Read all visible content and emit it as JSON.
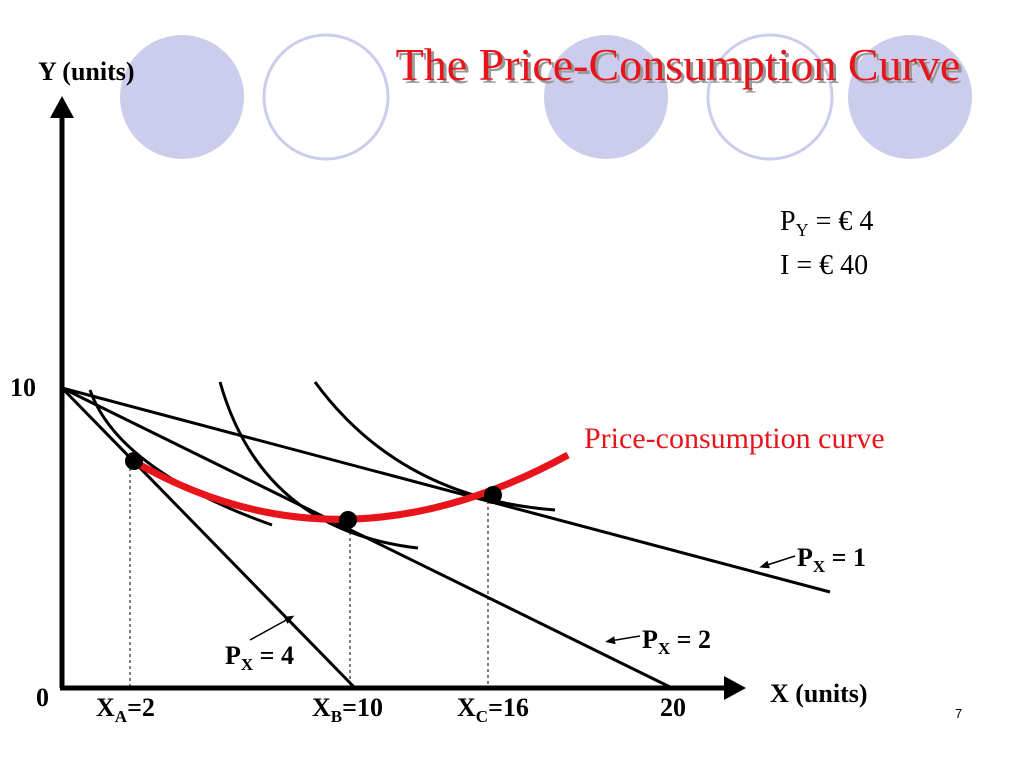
{
  "title": "The Price-Consumption Curve",
  "y_axis_label": "Y (units)",
  "x_axis_label": "X (units)",
  "origin_label": "0",
  "y_intercept_label": "10",
  "x_labels": [
    {
      "main": "X",
      "sub": "A",
      "rest": "=2"
    },
    {
      "main": "X",
      "sub": "B",
      "rest": "=10"
    },
    {
      "main": "X",
      "sub": "C",
      "rest": "=16"
    },
    "20"
  ],
  "given": [
    {
      "main": "P",
      "sub": "Y",
      "rest": " = € 4"
    },
    "I = € 40"
  ],
  "curve_label": "Price-consumption curve",
  "budget_labels": [
    {
      "main": "P",
      "sub": "X",
      "rest": " = 1"
    },
    {
      "main": "P",
      "sub": "X",
      "rest": " = 2"
    },
    {
      "main": "P",
      "sub": "X",
      "rest": " = 4"
    }
  ],
  "page_number": "7"
}
